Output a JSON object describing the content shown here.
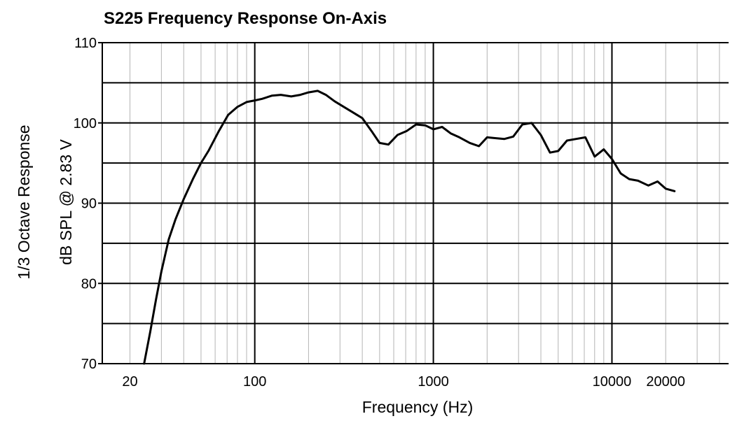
{
  "chart_data": {
    "type": "line",
    "title": "S225 Frequency Response On-Axis",
    "xlabel": "Frequency (Hz)",
    "ylabel_line1": "1/3  Octave  Response",
    "ylabel_line2": "dB SPL @ 2.83 V",
    "x_scale": "log",
    "xlim": [
      14,
      45000
    ],
    "ylim": [
      70,
      110
    ],
    "y_ticks": [
      70,
      80,
      90,
      100,
      110
    ],
    "y_gridlines": [
      75,
      80,
      85,
      90,
      95,
      100,
      105,
      110
    ],
    "x_tick_labels": [
      {
        "value": 20,
        "label": "20"
      },
      {
        "value": 100,
        "label": "100"
      },
      {
        "value": 1000,
        "label": "1000"
      },
      {
        "value": 10000,
        "label": "10000"
      },
      {
        "value": 20000,
        "label": "20000"
      }
    ],
    "x_major_gridlines": [
      100,
      1000,
      10000
    ],
    "grid": true,
    "series": [
      {
        "color": "#000000",
        "x": [
          24,
          26,
          28,
          30,
          33,
          36,
          40,
          45,
          50,
          55,
          63,
          71,
          80,
          90,
          100,
          110,
          125,
          140,
          160,
          180,
          200,
          225,
          250,
          280,
          315,
          355,
          400,
          450,
          500,
          560,
          630,
          710,
          800,
          900,
          1000,
          1120,
          1250,
          1400,
          1600,
          1800,
          2000,
          2240,
          2500,
          2800,
          3150,
          3550,
          4000,
          4500,
          5000,
          5600,
          6300,
          7100,
          8000,
          9000,
          10000,
          11200,
          12500,
          14000,
          16000,
          18000,
          20000,
          22400
        ],
        "y": [
          70,
          74,
          78,
          81.5,
          85.5,
          88,
          90.5,
          93,
          95,
          96.5,
          99,
          101,
          102,
          102.6,
          102.8,
          103,
          103.4,
          103.5,
          103.3,
          103.5,
          103.8,
          104,
          103.5,
          102.7,
          102,
          101.3,
          100.6,
          99,
          97.5,
          97.3,
          98.5,
          99,
          99.8,
          99.7,
          99.2,
          99.5,
          98.7,
          98.2,
          97.5,
          97.1,
          98.2,
          98.1,
          98,
          98.3,
          99.8,
          100,
          98.5,
          96.3,
          96.5,
          97.8,
          98,
          98.2,
          95.8,
          96.7,
          95.5,
          93.7,
          93,
          92.8,
          92.2,
          92.7,
          91.8,
          91.5
        ]
      }
    ]
  }
}
